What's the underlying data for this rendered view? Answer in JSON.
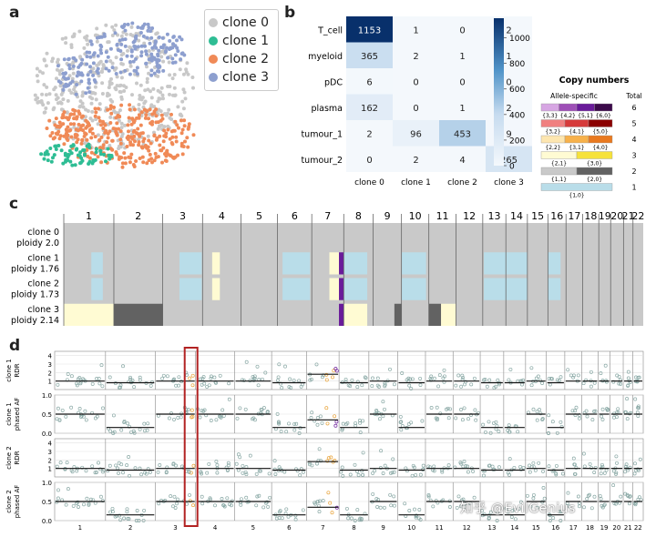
{
  "panels": {
    "a": "a",
    "b": "b",
    "c": "c",
    "d": "d"
  },
  "panel_a": {
    "legend": [
      {
        "label": "clone 0",
        "color": "#c8c8c8"
      },
      {
        "label": "clone 1",
        "color": "#2ebd94"
      },
      {
        "label": "clone 2",
        "color": "#f08a57"
      },
      {
        "label": "clone 3",
        "color": "#8d9fcf"
      }
    ]
  },
  "chart_data": [
    {
      "type": "heatmap",
      "panel": "b",
      "rows": [
        "T_cell",
        "myeloid",
        "pDC",
        "plasma",
        "tumour_1",
        "tumour_2"
      ],
      "columns": [
        "clone 0",
        "clone 1",
        "clone 2",
        "clone 3"
      ],
      "values": [
        [
          1153,
          1,
          0,
          2
        ],
        [
          365,
          2,
          1,
          1
        ],
        [
          6,
          0,
          0,
          0
        ],
        [
          162,
          0,
          1,
          2
        ],
        [
          2,
          96,
          453,
          9
        ],
        [
          0,
          2,
          4,
          265
        ]
      ],
      "colorbar_ticks": [
        "1000",
        "800",
        "600",
        "400",
        "200",
        "0"
      ],
      "colorbar_range": [
        0,
        1153
      ],
      "colormap": [
        "#f4f8fc",
        "#08306b"
      ]
    },
    {
      "type": "heatmap",
      "panel": "c",
      "chromosomes": [
        "1",
        "2",
        "3",
        "4",
        "5",
        "6",
        "7",
        "8",
        "9",
        "10",
        "11",
        "12",
        "13",
        "14",
        "15",
        "16",
        "17",
        "18",
        "19",
        "20",
        "21",
        "22"
      ],
      "clones": [
        {
          "label": "clone 0",
          "ploidy": "ploidy 2.0"
        },
        {
          "label": "clone 1",
          "ploidy": "ploidy 1.76"
        },
        {
          "label": "clone 2",
          "ploidy": "ploidy 1.73"
        },
        {
          "label": "clone 3",
          "ploidy": "ploidy 2.14"
        }
      ],
      "segments": [
        {
          "clone": 1,
          "chrom": "1",
          "start": 0.55,
          "end": 0.78,
          "state": "{1,0}"
        },
        {
          "clone": 1,
          "chrom": "3",
          "start": 0.42,
          "end": 0.98,
          "state": "{1,0}"
        },
        {
          "clone": 1,
          "chrom": "4",
          "start": 0.25,
          "end": 0.45,
          "state": "{2,1}"
        },
        {
          "clone": 1,
          "chrom": "6",
          "start": 0.15,
          "end": 0.95,
          "state": "{1,0}"
        },
        {
          "clone": 1,
          "chrom": "7",
          "start": 0.55,
          "end": 0.85,
          "state": "{2,1}"
        },
        {
          "clone": 1,
          "chrom": "7",
          "start": 0.85,
          "end": 1.0,
          "state": "{5,1}"
        },
        {
          "clone": 1,
          "chrom": "8",
          "start": 0.0,
          "end": 0.8,
          "state": "{1,0}"
        },
        {
          "clone": 1,
          "chrom": "10",
          "start": 0.0,
          "end": 0.9,
          "state": "{1,0}"
        },
        {
          "clone": 1,
          "chrom": "13",
          "start": 0.05,
          "end": 1.0,
          "state": "{1,0}"
        },
        {
          "clone": 1,
          "chrom": "14",
          "start": 0.0,
          "end": 1.0,
          "state": "{1,0}"
        },
        {
          "clone": 1,
          "chrom": "16",
          "start": 0.0,
          "end": 0.7,
          "state": "{1,0}"
        },
        {
          "clone": 3,
          "chrom": "1",
          "start": 0.0,
          "end": 1.0,
          "state": "{2,1}"
        },
        {
          "clone": 3,
          "chrom": "2",
          "start": 0.0,
          "end": 1.0,
          "state": "{2,0}"
        },
        {
          "clone": 3,
          "chrom": "7",
          "start": 0.85,
          "end": 1.0,
          "state": "{5,1}"
        },
        {
          "clone": 3,
          "chrom": "8",
          "start": 0.0,
          "end": 0.8,
          "state": "{2,1}"
        },
        {
          "clone": 3,
          "chrom": "9",
          "start": 0.75,
          "end": 1.0,
          "state": "{2,0}"
        },
        {
          "clone": 3,
          "chrom": "11",
          "start": 0.0,
          "end": 0.45,
          "state": "{2,0}"
        },
        {
          "clone": 3,
          "chrom": "11",
          "start": 0.45,
          "end": 1.0,
          "state": "{2,1}"
        }
      ]
    },
    {
      "type": "scatter",
      "panel": "d",
      "rows": [
        {
          "ylabel": "clone 1 RDR",
          "ticks": [
            "4",
            "3",
            "2",
            "1"
          ],
          "ylim": [
            0,
            4.5
          ]
        },
        {
          "ylabel": "clone 1 phased AF",
          "ticks": [
            "1.0",
            "0.5",
            "0.0"
          ],
          "ylim": [
            0,
            1.0
          ]
        },
        {
          "ylabel": "clone 2 RDR",
          "ticks": [
            "4",
            "3",
            "2",
            "1"
          ],
          "ylim": [
            0,
            4.5
          ]
        },
        {
          "ylabel": "clone 2 phased AF",
          "ticks": [
            "1.0",
            "0.5",
            "0.0"
          ],
          "ylim": [
            0,
            1.0
          ]
        }
      ],
      "x_ticks": [
        "1",
        "2",
        "3",
        "4",
        "5",
        "6",
        "7",
        "8",
        "9",
        "10",
        "11",
        "12",
        "13",
        "14",
        "15",
        "16",
        "17",
        "18",
        "19",
        "20",
        "21",
        "22"
      ],
      "highlight": "chromosome 3 boundary"
    }
  ],
  "copy_numbers": {
    "title": "Copy numbers",
    "subtitle_left": "Allele-specific",
    "subtitle_right": "Total",
    "rows": [
      {
        "total": "6",
        "swatches": [
          "#d7a6e3",
          "#9e4fb7",
          "#6a1b9a",
          "#3c0a4a"
        ],
        "labels": [
          "{3,3}",
          "{4,2}",
          "{5,1}",
          "{6,0}"
        ]
      },
      {
        "total": "5",
        "swatches": [
          "#f08080",
          "#d63a3a",
          "#8b0000"
        ],
        "labels": [
          "{3,2}",
          "{4,1}",
          "{5,0}"
        ]
      },
      {
        "total": "4",
        "swatches": [
          "#fde6b0",
          "#f7b14b",
          "#e9791f"
        ],
        "labels": [
          "{2,2}",
          "{3,1}",
          "{4,0}"
        ]
      },
      {
        "total": "3",
        "swatches": [
          "#fffbd3",
          "#f6e23a"
        ],
        "labels": [
          "{2,1}",
          "{3,0}"
        ]
      },
      {
        "total": "2",
        "swatches": [
          "#c9c9c9",
          "#626262"
        ],
        "labels": [
          "{1,1}",
          "{2,0}"
        ]
      },
      {
        "total": "1",
        "swatches": [
          "#b9dde9"
        ],
        "labels": [
          "{1,0}"
        ]
      }
    ]
  },
  "watermark": "知乎 @EvilGenius"
}
